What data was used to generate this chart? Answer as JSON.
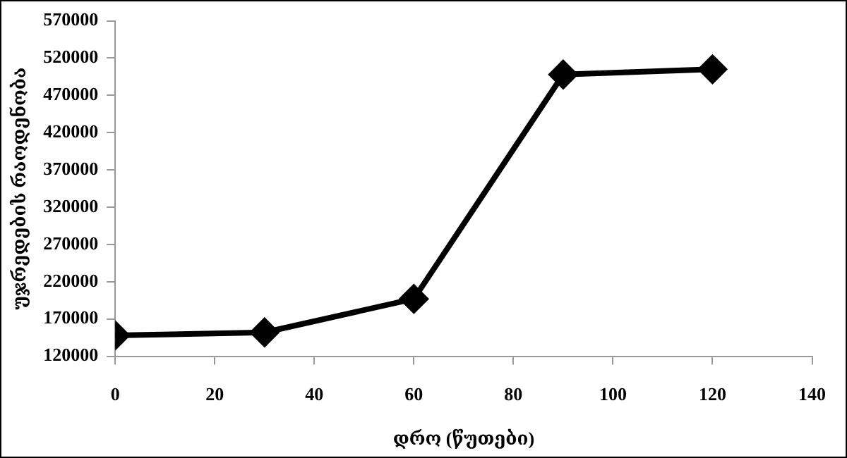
{
  "chart_data": {
    "type": "line",
    "xlabel": "დრო (წუთები)",
    "ylabel": "უჯრედების რაოდენობა",
    "x": [
      0,
      30,
      60,
      90,
      120
    ],
    "series": [
      {
        "color": "#000000",
        "values": [
          148000,
          152000,
          197000,
          498000,
          505000
        ]
      }
    ],
    "xlim": [
      0,
      140
    ],
    "xticks": [
      0,
      20,
      40,
      60,
      80,
      100,
      120,
      140
    ],
    "ylim": [
      120000,
      570000
    ],
    "yticks": [
      120000,
      170000,
      220000,
      270000,
      320000,
      370000,
      420000,
      470000,
      520000,
      570000
    ],
    "grid": false,
    "legend": false,
    "marker": "diamond",
    "line_style": "solid"
  }
}
